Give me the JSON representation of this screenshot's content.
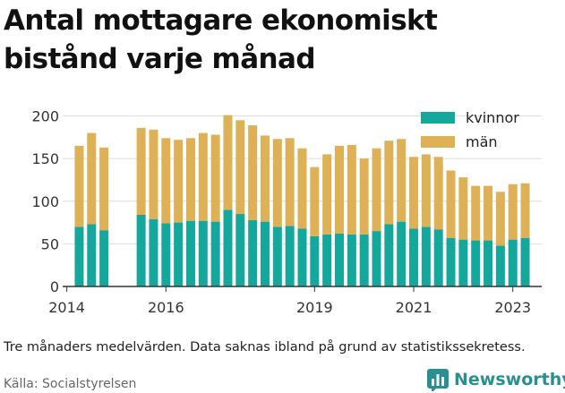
{
  "title": "Antal mottagare ekonomiskt bistånd varje månad",
  "note": "Tre månaders medelvärden. Data saknas ibland på grund av statistikssekretess.",
  "source": "Källa: Socialstyrelsen",
  "brand": {
    "name": "Newsworthy",
    "color": "#2a8f90",
    "icon": "bar-chart-logo-icon"
  },
  "colors": {
    "kvinnor": "#14a89c",
    "man": "#deb157",
    "axis": "#333333",
    "grid": "#dddddd"
  },
  "chart_data": {
    "type": "bar",
    "stacked": true,
    "xlim": [
      "2013-12",
      "2023-08"
    ],
    "ylim": [
      0,
      210
    ],
    "yticks": [
      0,
      50,
      100,
      150,
      200
    ],
    "xticks": [
      {
        "label": "2014",
        "x": "2014-01"
      },
      {
        "label": "2016",
        "x": "2016-01"
      },
      {
        "label": "2019",
        "x": "2019-01"
      },
      {
        "label": "2021",
        "x": "2021-01"
      },
      {
        "label": "2023",
        "x": "2023-01"
      }
    ],
    "grid": "horizontal",
    "legend": "top-right",
    "x": [
      "2014-04",
      "2014-07",
      "2014-10",
      "2015-07",
      "2015-10",
      "2016-01",
      "2016-04",
      "2016-07",
      "2016-10",
      "2017-01",
      "2017-04",
      "2017-07",
      "2017-10",
      "2018-01",
      "2018-04",
      "2018-07",
      "2018-10",
      "2019-01",
      "2019-04",
      "2019-07",
      "2019-10",
      "2020-01",
      "2020-04",
      "2020-07",
      "2020-10",
      "2021-01",
      "2021-04",
      "2021-07",
      "2021-10",
      "2022-01",
      "2022-04",
      "2022-07",
      "2022-10",
      "2023-01",
      "2023-04"
    ],
    "series": [
      {
        "name": "kvinnor",
        "values": [
          70,
          73,
          66,
          84,
          79,
          74,
          75,
          77,
          77,
          76,
          90,
          85,
          78,
          76,
          70,
          71,
          68,
          59,
          61,
          62,
          61,
          61,
          65,
          73,
          76,
          68,
          70,
          67,
          57,
          55,
          54,
          54,
          48,
          55,
          57
        ]
      },
      {
        "name": "män",
        "values": [
          95,
          107,
          97,
          102,
          105,
          100,
          97,
          97,
          103,
          102,
          111,
          110,
          111,
          101,
          103,
          103,
          94,
          81,
          94,
          103,
          105,
          89,
          97,
          98,
          97,
          84,
          85,
          85,
          79,
          73,
          64,
          64,
          63,
          65,
          64
        ]
      }
    ]
  }
}
